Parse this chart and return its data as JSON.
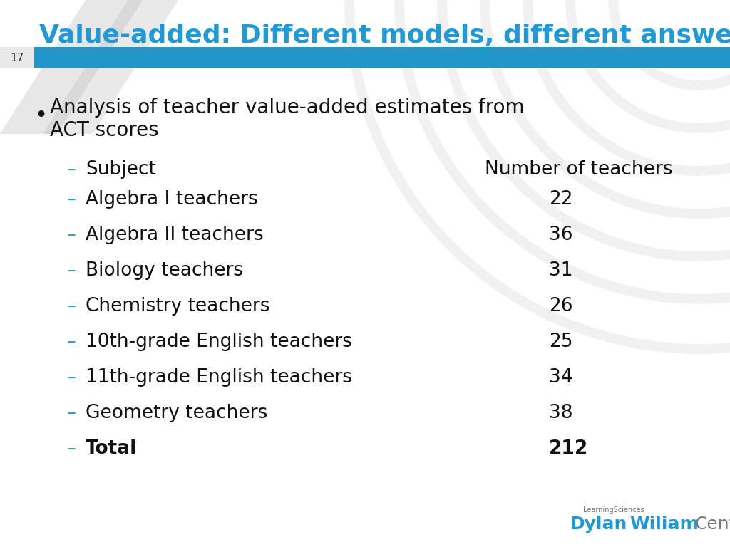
{
  "title": "Value-added: Different models, different answers",
  "title_color": "#1F9AD6",
  "slide_number": "17",
  "bar_color": "#2196C8",
  "background_color": "#FFFFFF",
  "bullet_color": "#111111",
  "header_subject": "Subject",
  "header_count": "Number of teachers",
  "dash_color": "#1F9AD6",
  "rows": [
    {
      "subject": "Algebra I teachers",
      "count": "22"
    },
    {
      "subject": "Algebra II teachers",
      "count": "36"
    },
    {
      "subject": "Biology teachers",
      "count": "31"
    },
    {
      "subject": "Chemistry teachers",
      "count": "26"
    },
    {
      "subject": "10th-grade English teachers",
      "count": "25"
    },
    {
      "subject": "11th-grade English teachers",
      "count": "34"
    },
    {
      "subject": "Geometry teachers",
      "count": "38"
    }
  ],
  "total_label": "Total",
  "total_count": "212",
  "logo_text_learning": "LearningSciences",
  "logo_text_dylan": "Dylan",
  "logo_text_wiliam": "Wiliam",
  "logo_text_center": "Center",
  "logo_color_blue": "#1F9AD6",
  "logo_color_gray": "#777777"
}
